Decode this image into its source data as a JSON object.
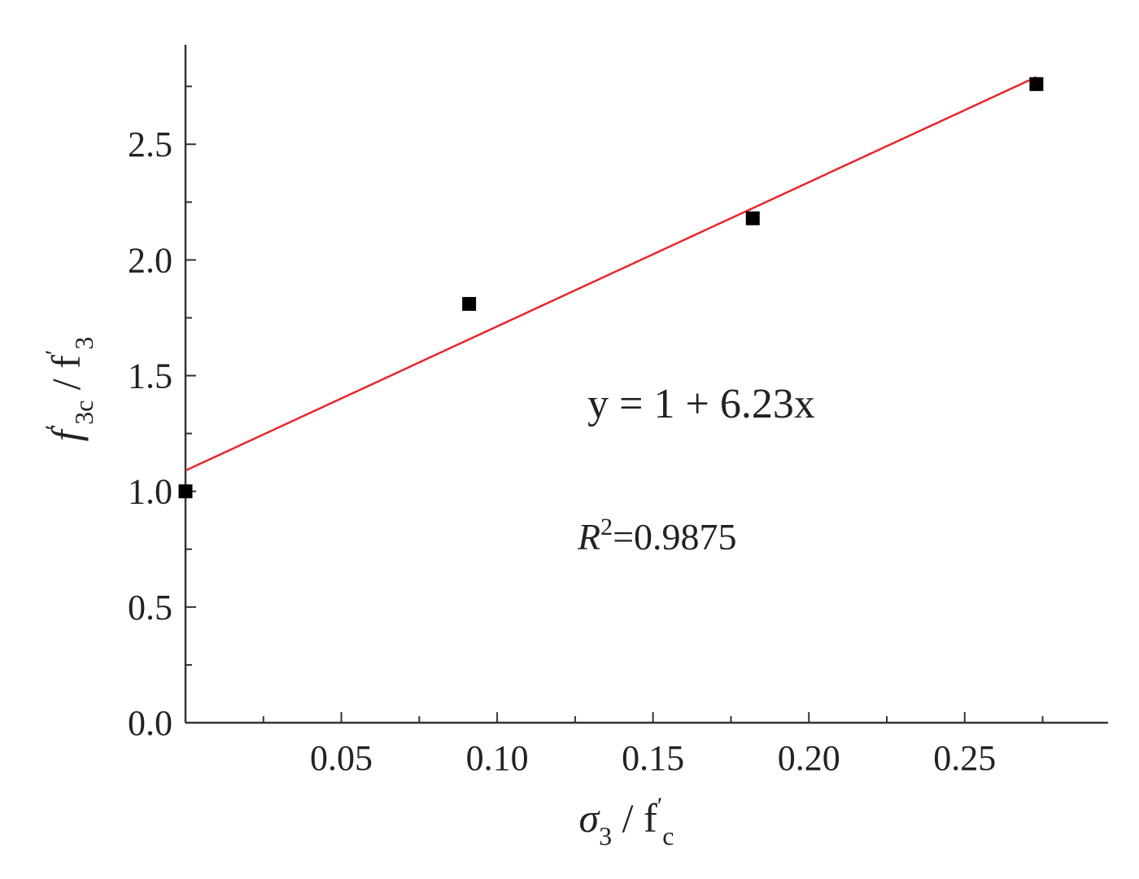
{
  "chart_data": {
    "type": "scatter",
    "series": [
      {
        "marker": "square",
        "points": [
          {
            "x": 0.0,
            "y": 1.0
          },
          {
            "x": 0.091,
            "y": 1.81
          },
          {
            "x": 0.182,
            "y": 2.18
          },
          {
            "x": 0.273,
            "y": 2.76
          }
        ]
      }
    ],
    "fit_line": {
      "slope": 6.23,
      "intercept": 1.09,
      "x_range": [
        0.0,
        0.273
      ],
      "color": "#e8262b"
    },
    "xlim": [
      0.0,
      0.296
    ],
    "ylim": [
      0.0,
      2.93
    ],
    "xticks": [
      "0.05",
      "0.10",
      "0.15",
      "0.20",
      "0.25"
    ],
    "yticks": [
      "0.0",
      "0.5",
      "1.0",
      "1.5",
      "2.0",
      "2.5"
    ],
    "xlabel": {
      "main": "σ",
      "sub": "3",
      "rest": " / f",
      "prime": "′",
      "sub2": "c"
    },
    "ylabel": {
      "main": "f",
      "prime": "′",
      "sub": "3c",
      "rest": " / f",
      "prime2": "′",
      "sub2": "3"
    },
    "annotations": {
      "equation": "y = 1 + 6.23x",
      "r2_label": "R",
      "r2_sup": "2",
      "r2_value": "=0.9875"
    },
    "grid": false,
    "legend": "none"
  }
}
